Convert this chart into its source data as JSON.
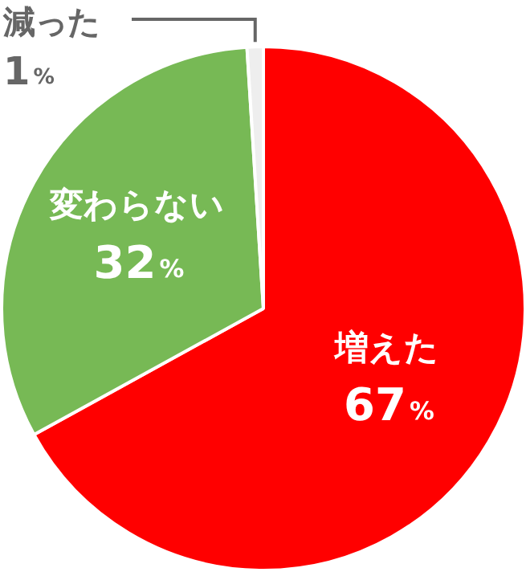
{
  "chart_data": {
    "type": "pie",
    "categories": [
      "増えた",
      "変わらない",
      "減った"
    ],
    "values": [
      67,
      32,
      1
    ],
    "colors": [
      "#ff0000",
      "#77b955",
      "#eeeeee"
    ],
    "value_labels": [
      "67%",
      "32%",
      "1%"
    ],
    "legend": false
  }
}
